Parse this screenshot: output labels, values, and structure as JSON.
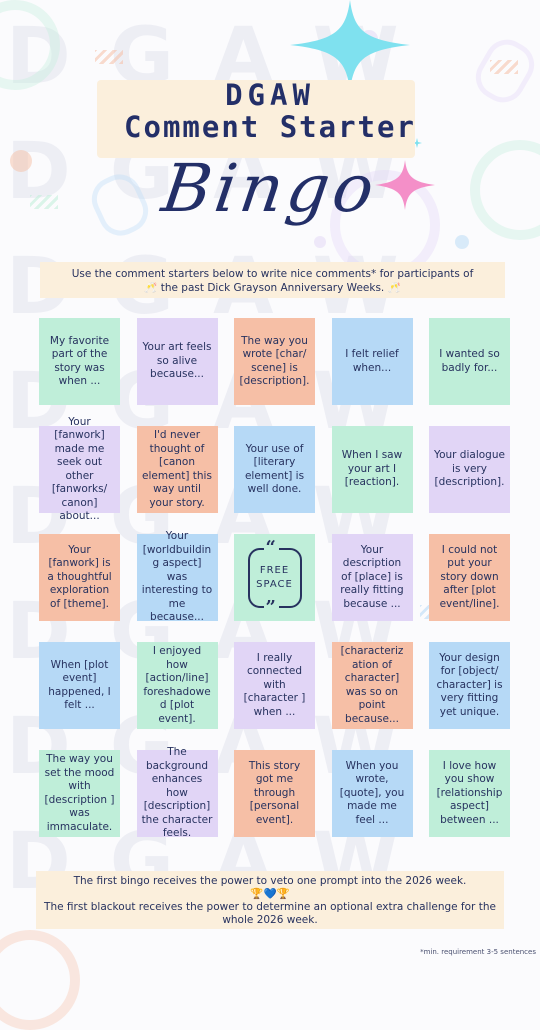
{
  "title": {
    "line1": "DGAW",
    "line2": "Comment Starter",
    "line3": "Bingo"
  },
  "intro": {
    "line1": "Use the comment starters below to write nice comments* for participants of",
    "line2": "🥂 the past Dick Grayson Anniversary Weeks. 🥂"
  },
  "colors": {
    "green": "#bfeed9",
    "purple": "#e1d5f6",
    "peach": "#f6bfa6",
    "blue": "#b6d9f6",
    "cream": "#fbefdc",
    "navy": "#27325f"
  },
  "grid": [
    [
      {
        "text": "My favorite part of the story was when ...",
        "color": "green"
      },
      {
        "text": "Your art feels so alive because...",
        "color": "purple"
      },
      {
        "text": "The way you wrote [char/ scene] is [description].",
        "color": "peach"
      },
      {
        "text": "I felt relief when...",
        "color": "blue"
      },
      {
        "text": "I wanted so badly for...",
        "color": "green"
      }
    ],
    [
      {
        "text": "Your [fanwork] made me seek out other [fanworks/ canon] about...",
        "color": "purple"
      },
      {
        "text": "I'd never thought of [canon element] this way until your story.",
        "color": "peach"
      },
      {
        "text": "Your use of [literary element] is well done.",
        "color": "blue"
      },
      {
        "text": "When I saw your art I [reaction].",
        "color": "green"
      },
      {
        "text": "Your dialogue is very [description].",
        "color": "purple"
      }
    ],
    [
      {
        "text": "Your [fanwork] is a thoughtful exploration of [theme].",
        "color": "peach"
      },
      {
        "text": "Your [worldbuilding aspect] was interesting to me because...",
        "color": "blue"
      },
      {
        "text": "FREE SPACE",
        "color": "green",
        "free": true
      },
      {
        "text": "Your description of [place] is really fitting because ...",
        "color": "purple"
      },
      {
        "text": "I could not put your story down after [plot event/line].",
        "color": "peach"
      }
    ],
    [
      {
        "text": "When [plot event] happened, I felt ...",
        "color": "blue"
      },
      {
        "text": "I enjoyed how [action/line] foreshadowed [plot event].",
        "color": "green"
      },
      {
        "text": "I really connected with [character ] when ...",
        "color": "purple"
      },
      {
        "text": "[characteriz ation of character] was so on point because...",
        "color": "peach"
      },
      {
        "text": "Your design for [object/ character] is very fitting yet unique.",
        "color": "blue"
      }
    ],
    [
      {
        "text": "The way you set the mood with [description ] was immaculate.",
        "color": "green"
      },
      {
        "text": "The background enhances how [description] the character feels.",
        "color": "purple"
      },
      {
        "text": "This story got me through [personal event].",
        "color": "peach"
      },
      {
        "text": "When you wrote, [quote], you made me feel ...",
        "color": "blue"
      },
      {
        "text": "I love how you show [relationship aspect] between ...",
        "color": "green"
      }
    ]
  ],
  "free_space": {
    "line1": "FREE",
    "line2": "SPACE"
  },
  "footer": {
    "line1": "The first bingo receives the power to veto one prompt into the 2026 week.",
    "line2": "🏆💙🏆",
    "line3": "The first blackout receives the power to determine an optional extra challenge for the whole 2026 week."
  },
  "footnote": "*min. requirement 3-5 sentences"
}
